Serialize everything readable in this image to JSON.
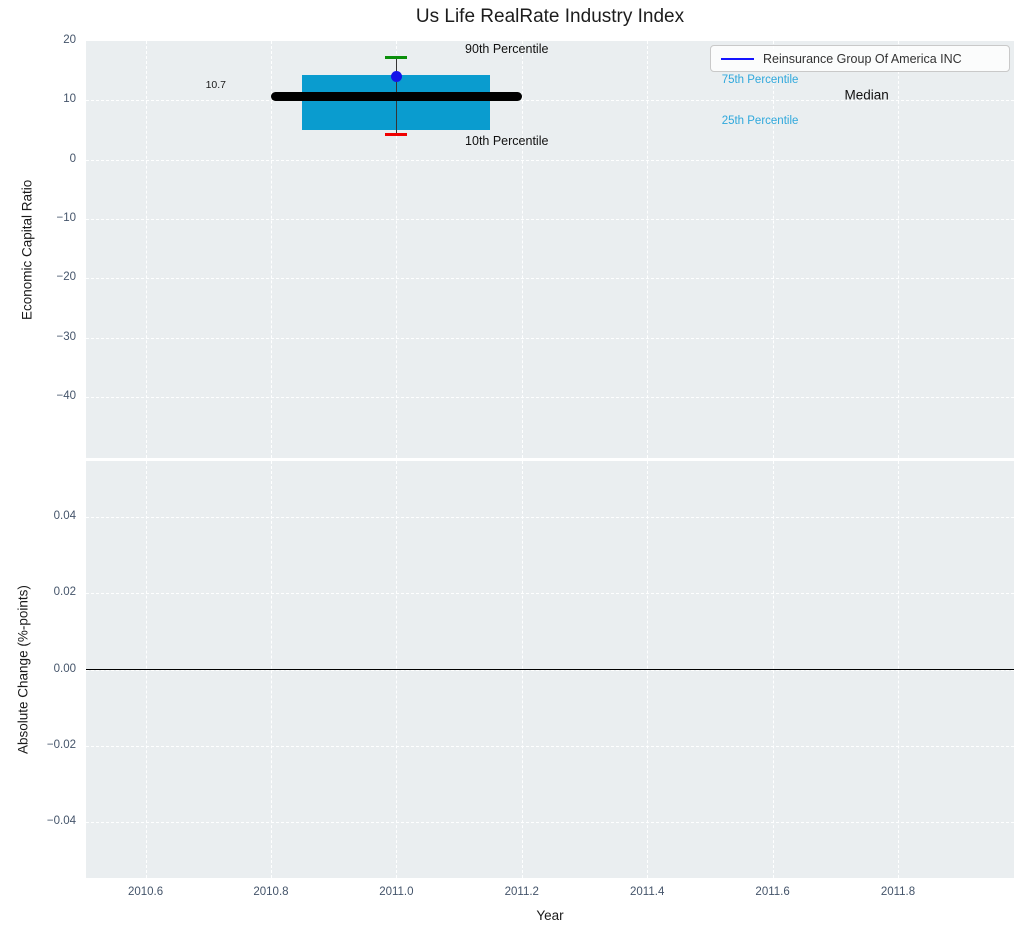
{
  "title": "Us Life RealRate Industry Index",
  "legend": {
    "label": "Reinsurance Group Of America INC",
    "line_color": "#1414ff"
  },
  "colors": {
    "plot_bg": "#eaeef0",
    "grid": "#ffffff",
    "tick_label": "#44546a",
    "text": "#1a1a1a",
    "zero_line": "#000000"
  },
  "chart_data": [
    {
      "type": "boxplot",
      "panel": "top",
      "title": "Us Life RealRate Industry Index",
      "xlabel": "Year",
      "ylabel": "Economic Capital Ratio",
      "xlim": [
        2010.505,
        2011.985
      ],
      "ylim": [
        -50.3,
        20
      ],
      "grid": true,
      "legend_position": "upper right",
      "xticks": [
        {
          "v": 2010.6,
          "label": "2010.6"
        },
        {
          "v": 2010.8,
          "label": "2010.8"
        },
        {
          "v": 2011.0,
          "label": "2011.0"
        },
        {
          "v": 2011.2,
          "label": "2011.2"
        },
        {
          "v": 2011.4,
          "label": "2011.4"
        },
        {
          "v": 2011.6,
          "label": "2011.6"
        },
        {
          "v": 2011.8,
          "label": "2011.8"
        }
      ],
      "yticks": [
        {
          "v": 20,
          "label": "20"
        },
        {
          "v": 10,
          "label": "10"
        },
        {
          "v": 0,
          "label": "0"
        },
        {
          "v": -10,
          "label": "−10"
        },
        {
          "v": -20,
          "label": "−20"
        },
        {
          "v": -30,
          "label": "−30"
        },
        {
          "v": -40,
          "label": "−40"
        }
      ],
      "box": {
        "x": 2011.0,
        "p10": 4.3,
        "p25": 5.0,
        "median": 10.7,
        "p75": 14.2,
        "p90": 17.3,
        "box_half_width": 0.15,
        "median_half_width": 0.2,
        "cap_half_width": 0.017,
        "box_color": "#0a9ccf",
        "median_color": "#000000",
        "p90_cap_color": "#0b8f0b",
        "p10_cap_color": "#f00000",
        "whisker_color": "#3a3a3a"
      },
      "series": [
        {
          "name": "Reinsurance Group Of America INC",
          "x": 2011.0,
          "value": 14.0,
          "marker_color": "#1414e8"
        }
      ],
      "annotations": [
        {
          "text": "10.7",
          "x": 2010.712,
          "y": 12.5,
          "color": "#1a1a1a",
          "size": 10.5
        },
        {
          "text": "90th Percentile",
          "x": 2011.176,
          "y": 18.6,
          "color": "#111111",
          "size": 12.5
        },
        {
          "text": "10th Percentile",
          "x": 2011.176,
          "y": 3.1,
          "color": "#111111",
          "size": 12.5
        },
        {
          "text": "75th Percentile",
          "x": 2011.58,
          "y": 13.4,
          "color": "#2fa8dc",
          "size": 11.5
        },
        {
          "text": "Median",
          "x": 2011.75,
          "y": 10.9,
          "color": "#111111",
          "size": 13.5
        },
        {
          "text": "25th Percentile",
          "x": 2011.58,
          "y": 6.5,
          "color": "#2fa8dc",
          "size": 11.5
        }
      ]
    },
    {
      "type": "line",
      "panel": "bottom",
      "xlabel": "Year",
      "ylabel": "Absolute Change (%-points)",
      "xlim": [
        2010.505,
        2011.985
      ],
      "ylim": [
        -0.0546,
        0.0546
      ],
      "grid": true,
      "zero_line": true,
      "xticks": [
        {
          "v": 2010.6,
          "label": "2010.6"
        },
        {
          "v": 2010.8,
          "label": "2010.8"
        },
        {
          "v": 2011.0,
          "label": "2011.0"
        },
        {
          "v": 2011.2,
          "label": "2011.2"
        },
        {
          "v": 2011.4,
          "label": "2011.4"
        },
        {
          "v": 2011.6,
          "label": "2011.6"
        },
        {
          "v": 2011.8,
          "label": "2011.8"
        }
      ],
      "yticks": [
        {
          "v": 0.04,
          "label": "0.04"
        },
        {
          "v": 0.02,
          "label": "0.02"
        },
        {
          "v": 0.0,
          "label": "0.00"
        },
        {
          "v": -0.02,
          "label": "−0.02"
        },
        {
          "v": -0.04,
          "label": "−0.04"
        }
      ],
      "series": []
    }
  ]
}
